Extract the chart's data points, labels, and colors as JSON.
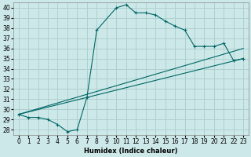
{
  "background_color": "#cde8e8",
  "grid_color": "#b0d0d0",
  "line_color": "#006666",
  "xlabel": "Humidex (Indice chaleur)",
  "xlim": [
    -0.5,
    23.5
  ],
  "ylim": [
    27.5,
    40.5
  ],
  "xticks": [
    0,
    1,
    2,
    3,
    4,
    5,
    6,
    7,
    8,
    9,
    10,
    11,
    12,
    13,
    14,
    15,
    16,
    17,
    18,
    19,
    20,
    21,
    22,
    23
  ],
  "yticks": [
    28,
    29,
    30,
    31,
    32,
    33,
    34,
    35,
    36,
    37,
    38,
    39,
    40
  ],
  "curve_main_x": [
    0,
    1,
    2,
    3,
    4,
    5,
    6,
    7,
    8,
    10,
    11,
    12,
    13,
    14,
    15,
    16,
    17,
    18,
    19,
    20,
    21,
    22,
    23
  ],
  "curve_main_y": [
    29.5,
    29.2,
    29.2,
    29.0,
    28.5,
    27.8,
    28.0,
    31.2,
    37.8,
    40.0,
    40.3,
    39.5,
    39.5,
    39.3,
    38.7,
    38.2,
    37.8,
    36.2,
    36.2,
    36.2,
    36.5,
    34.8,
    35.0
  ],
  "line1_x": [
    0,
    23
  ],
  "line1_y": [
    29.5,
    35.0
  ],
  "line2_x": [
    0,
    23
  ],
  "line2_y": [
    29.5,
    36.0
  ]
}
